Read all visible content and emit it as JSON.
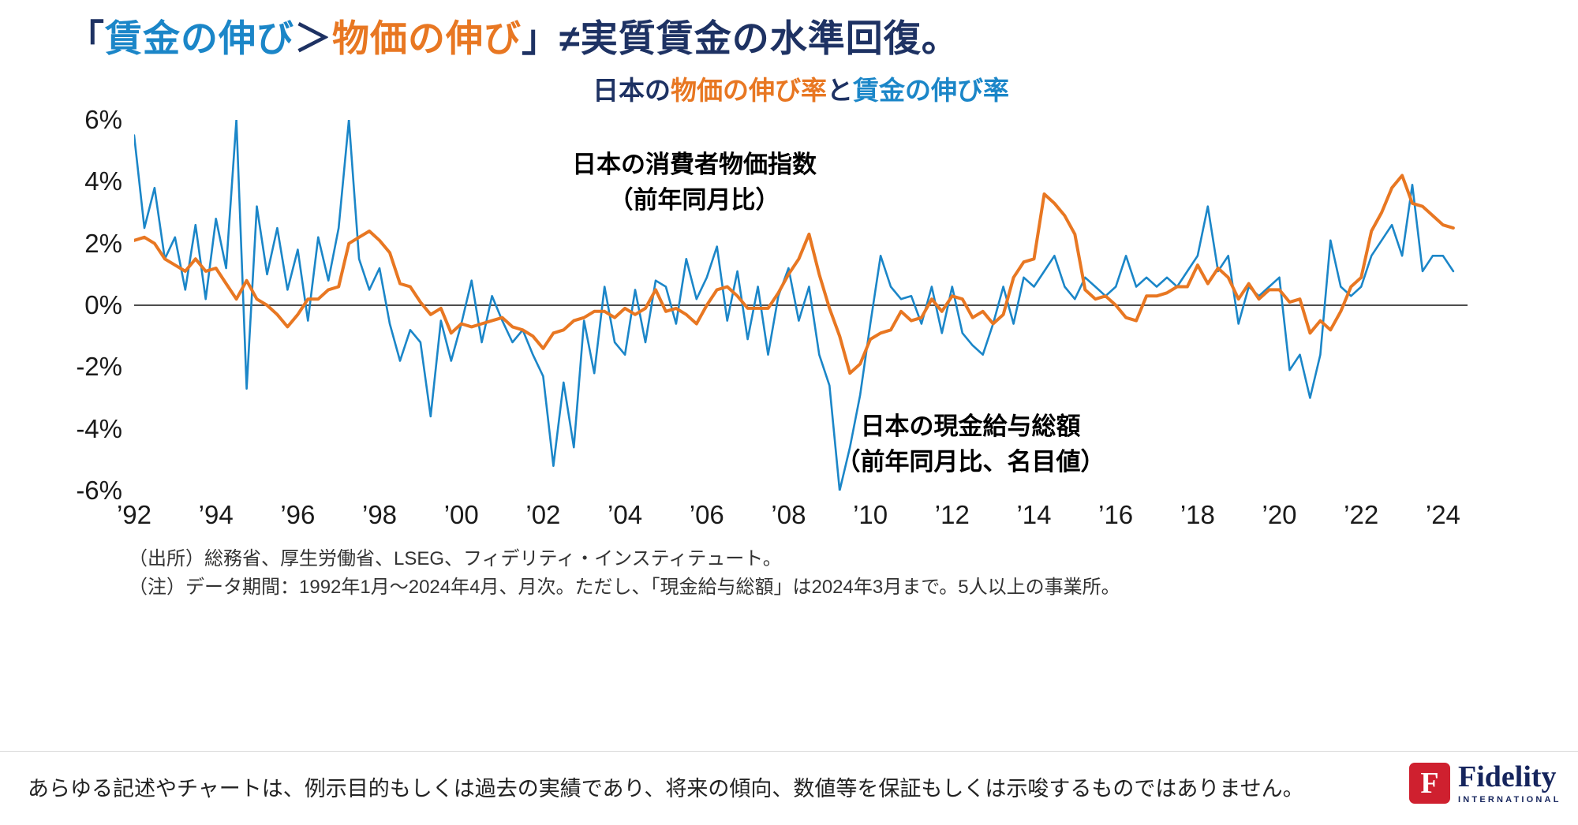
{
  "colors": {
    "navy": "#1e3263",
    "blue": "#1b86c8",
    "orange": "#e87722",
    "axis_text": "#1a1a1a",
    "zero_line": "#4d4d4d",
    "logo_red": "#cf202f",
    "logo_navy": "#16255d"
  },
  "header": {
    "title_segments": [
      {
        "text": "「",
        "color": "navy"
      },
      {
        "text": "賃金の伸び",
        "color": "blue"
      },
      {
        "text": "＞",
        "color": "navy"
      },
      {
        "text": "物価の伸び",
        "color": "orange"
      },
      {
        "text": "」≠実質賃金の水準回復。",
        "color": "navy"
      }
    ]
  },
  "chart": {
    "title_segments": [
      {
        "text": "日本の",
        "color": "navy"
      },
      {
        "text": "物価の伸び率",
        "color": "orange"
      },
      {
        "text": "と",
        "color": "navy"
      },
      {
        "text": "賃金の伸び率",
        "color": "blue"
      }
    ]
  },
  "annotations": {
    "cpi_line1": "日本の消費者物価指数",
    "cpi_line2": "（前年同月比）",
    "wage_line1": "日本の現金給与総額",
    "wage_line2": "（前年同月比、名目値）"
  },
  "footnotes": {
    "source": "（出所）総務省、厚生労働省、LSEG、フィデリティ・インスティテュート。",
    "note": "（注）データ期間：1992年1月～2024年4月、月次。ただし、「現金給与総額」は2024年3月まで。5人以上の事業所。"
  },
  "disclaimer": "あらゆる記述やチャートは、例示目的もしくは過去の実績であり、将来の傾向、数値等を保証もしくは示唆するものではありません。",
  "logo": {
    "mark": "F",
    "name": "Fidelity",
    "subtitle": "INTERNATIONAL"
  },
  "chart_data": {
    "type": "line",
    "title": "日本の物価の伸び率と賃金の伸び率",
    "x_start": 1992.0,
    "x_step": 0.25,
    "x_axis": {
      "min": 1992,
      "max": 2024.6,
      "tick_years": [
        1992,
        1994,
        1996,
        1998,
        2000,
        2002,
        2004,
        2006,
        2008,
        2010,
        2012,
        2014,
        2016,
        2018,
        2020,
        2022,
        2024
      ],
      "tick_labels": [
        "’92",
        "’94",
        "’96",
        "’98",
        "’00",
        "’02",
        "’04",
        "’06",
        "’08",
        "’10",
        "’12",
        "’14",
        "’16",
        "’18",
        "’20",
        "’22",
        "’24"
      ]
    },
    "y_axis": {
      "min": -6,
      "max": 6,
      "ticks": [
        6,
        4,
        2,
        0,
        -2,
        -4,
        -6
      ],
      "tick_labels": [
        "6%",
        "4%",
        "2%",
        "0%",
        "-2%",
        "-4%",
        "-6%"
      ],
      "unit": "%"
    },
    "grid": false,
    "legend": "in-plot text annotations",
    "series": [
      {
        "name": "日本の消費者物価指数（前年同月比）",
        "data_name": "cpi-line",
        "color": "#e87722",
        "values": [
          2.1,
          2.2,
          2.0,
          1.5,
          1.3,
          1.1,
          1.5,
          1.1,
          1.2,
          0.7,
          0.2,
          0.8,
          0.2,
          0.0,
          -0.3,
          -0.7,
          -0.3,
          0.2,
          0.2,
          0.5,
          0.6,
          2.0,
          2.2,
          2.4,
          2.1,
          1.7,
          0.7,
          0.6,
          0.1,
          -0.3,
          -0.1,
          -0.9,
          -0.6,
          -0.7,
          -0.6,
          -0.5,
          -0.4,
          -0.7,
          -0.8,
          -1.0,
          -1.4,
          -0.9,
          -0.8,
          -0.5,
          -0.4,
          -0.2,
          -0.2,
          -0.4,
          -0.1,
          -0.3,
          -0.1,
          0.5,
          -0.2,
          -0.1,
          -0.3,
          -0.6,
          0.0,
          0.5,
          0.6,
          0.3,
          -0.1,
          -0.1,
          -0.1,
          0.4,
          1.0,
          1.5,
          2.3,
          1.0,
          -0.1,
          -1.0,
          -2.2,
          -1.9,
          -1.1,
          -0.9,
          -0.8,
          -0.2,
          -0.5,
          -0.4,
          0.2,
          -0.2,
          0.3,
          0.2,
          -0.4,
          -0.2,
          -0.6,
          -0.3,
          0.9,
          1.4,
          1.5,
          3.6,
          3.3,
          2.9,
          2.3,
          0.5,
          0.2,
          0.3,
          0.0,
          -0.4,
          -0.5,
          0.3,
          0.3,
          0.4,
          0.6,
          0.6,
          1.3,
          0.7,
          1.2,
          0.9,
          0.2,
          0.7,
          0.2,
          0.5,
          0.5,
          0.1,
          0.2,
          -0.9,
          -0.5,
          -0.8,
          -0.2,
          0.6,
          0.9,
          2.4,
          3.0,
          3.8,
          4.2,
          3.3,
          3.2,
          2.9,
          2.6,
          2.5
        ]
      },
      {
        "name": "日本の現金給与総額（前年同月比、名目値）",
        "data_name": "wages-line",
        "color": "#1b86c8",
        "values": [
          5.5,
          2.5,
          3.8,
          1.5,
          2.2,
          0.5,
          2.6,
          0.2,
          2.8,
          1.2,
          6.0,
          -2.7,
          3.2,
          1.0,
          2.5,
          0.5,
          1.8,
          -0.5,
          2.2,
          0.8,
          2.5,
          6.0,
          1.5,
          0.5,
          1.2,
          -0.6,
          -1.8,
          -0.8,
          -1.2,
          -3.6,
          -0.5,
          -1.8,
          -0.6,
          0.8,
          -1.2,
          0.3,
          -0.5,
          -1.2,
          -0.8,
          -1.6,
          -2.3,
          -5.2,
          -2.5,
          -4.6,
          -0.5,
          -2.2,
          0.6,
          -1.2,
          -1.6,
          0.5,
          -1.2,
          0.8,
          0.6,
          -0.6,
          1.5,
          0.2,
          0.9,
          1.9,
          -0.5,
          1.1,
          -1.1,
          0.6,
          -1.6,
          0.3,
          1.2,
          -0.5,
          0.6,
          -1.6,
          -2.6,
          -6.0,
          -4.6,
          -2.9,
          -0.6,
          1.6,
          0.6,
          0.2,
          0.3,
          -0.6,
          0.6,
          -0.9,
          0.6,
          -0.9,
          -1.3,
          -1.6,
          -0.6,
          0.6,
          -0.6,
          0.9,
          0.6,
          1.1,
          1.6,
          0.6,
          0.2,
          0.9,
          0.6,
          0.3,
          0.6,
          1.6,
          0.6,
          0.9,
          0.6,
          0.9,
          0.6,
          1.1,
          1.6,
          3.2,
          1.1,
          1.6,
          -0.6,
          0.6,
          0.3,
          0.6,
          0.9,
          -2.1,
          -1.6,
          -3.0,
          -1.6,
          2.1,
          0.6,
          0.3,
          0.6,
          1.6,
          2.1,
          2.6,
          1.6,
          3.9,
          1.1,
          1.6,
          1.6,
          1.1
        ]
      }
    ]
  }
}
